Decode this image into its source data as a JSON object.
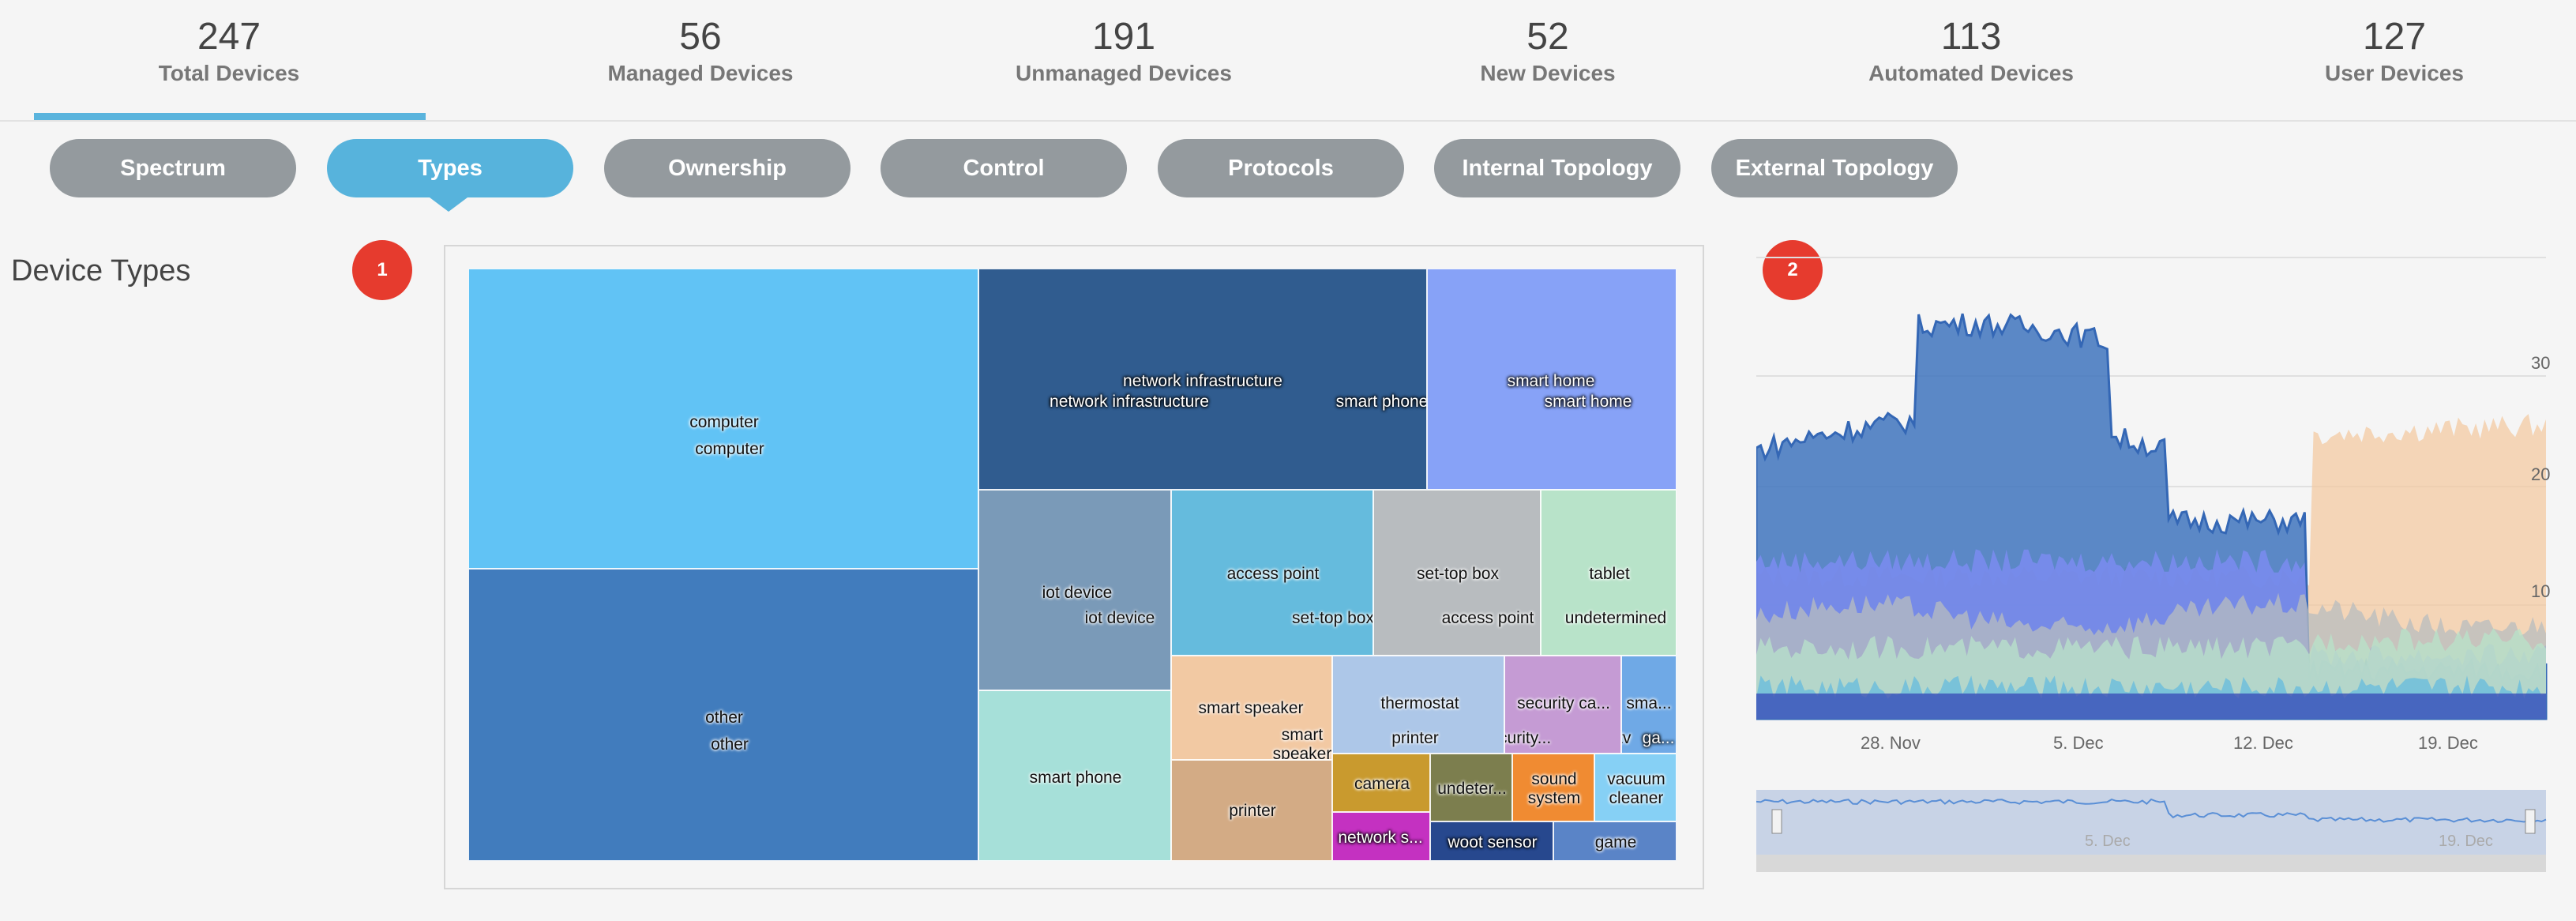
{
  "stats": [
    {
      "value": "247",
      "label": "Total Devices"
    },
    {
      "value": "56",
      "label": "Managed Devices"
    },
    {
      "value": "191",
      "label": "Unmanaged Devices"
    },
    {
      "value": "52",
      "label": "New Devices"
    },
    {
      "value": "113",
      "label": "Automated Devices"
    },
    {
      "value": "127",
      "label": "User Devices"
    }
  ],
  "tabs": [
    {
      "label": "Spectrum",
      "active": false
    },
    {
      "label": "Types",
      "active": true
    },
    {
      "label": "Ownership",
      "active": false
    },
    {
      "label": "Control",
      "active": false
    },
    {
      "label": "Protocols",
      "active": false
    },
    {
      "label": "Internal Topology",
      "active": false
    },
    {
      "label": "External Topology",
      "active": false
    }
  ],
  "section_title": "Device Types",
  "badges": [
    "1",
    "2"
  ],
  "treemap": {
    "cells": [
      {
        "labels": [
          "computer",
          "computer"
        ],
        "color": "#61c3f5"
      },
      {
        "labels": [
          "other",
          "other"
        ],
        "color": "#417cbd"
      },
      {
        "labels": [
          "network infrastructure",
          "network infrastructure"
        ],
        "color": "#305c8f"
      },
      {
        "labels": [
          "smart phone"
        ],
        "color": "#305c8f"
      },
      {
        "labels": [
          "smart home",
          "smart home"
        ],
        "color": "#87a2f7"
      },
      {
        "labels": [
          "iot device",
          "iot device"
        ],
        "color": "#7a9ab8"
      },
      {
        "labels": [
          "access point",
          "set-top box"
        ],
        "color": "#65bbdd"
      },
      {
        "labels": [
          "set-top box",
          "access point"
        ],
        "color": "#b8bcbf"
      },
      {
        "labels": [
          "tablet",
          "undetermined"
        ],
        "color": "#b8e3c9"
      },
      {
        "labels": [
          "smart phone"
        ],
        "color": "#a6e0d9"
      },
      {
        "labels": [
          "smart speaker"
        ],
        "color": "#f2c9a3"
      },
      {
        "labels": [
          "smart speaker"
        ],
        "color": "#f2c9a3"
      },
      {
        "labels": [
          "printer"
        ],
        "color": "#d3ab85"
      },
      {
        "labels": [
          "thermostat",
          "printer"
        ],
        "color": "#adc7e8"
      },
      {
        "labels": [
          "security ca...",
          "security..."
        ],
        "color": "#c59bd4"
      },
      {
        "labels": [
          "sma...",
          "smart tv",
          "ga..."
        ],
        "color": "#6fa9e6"
      },
      {
        "labels": [
          "camera"
        ],
        "color": "#c99a2e"
      },
      {
        "labels": [
          "undeter..."
        ],
        "color": "#7c7e4e"
      },
      {
        "labels": [
          "sound system"
        ],
        "color": "#f08b32"
      },
      {
        "labels": [
          "vacuum cleaner"
        ],
        "color": "#86d0f5"
      },
      {
        "labels": [
          "network s..."
        ],
        "color": "#c431c1"
      },
      {
        "labels": [
          "woot sensor"
        ],
        "color": "#27488e"
      },
      {
        "labels": [
          "game"
        ],
        "color": "#5a84c7"
      }
    ]
  },
  "area_chart": {
    "y_ticks": [
      "30",
      "20",
      "10"
    ],
    "x_ticks": [
      "28. Nov",
      "5. Dec",
      "12. Dec",
      "19. Dec"
    ],
    "navigator_ticks": [
      "5. Dec",
      "19. Dec"
    ],
    "series_colors": [
      "#3f74bd",
      "#f3c9a1",
      "#7f8cf5",
      "#b8bcbf",
      "#b8e3c9",
      "#65bbdd"
    ]
  }
}
